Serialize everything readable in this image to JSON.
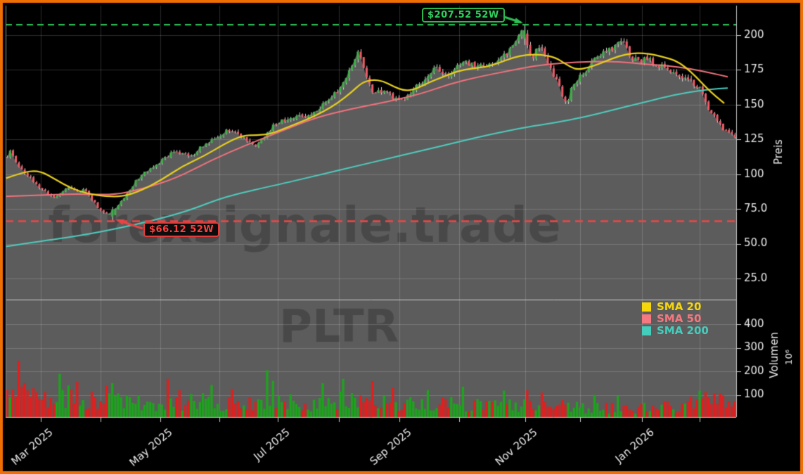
{
  "watermark": {
    "site": "forexsignale.trade",
    "symbol": "PLTR"
  },
  "annotations": {
    "high_label": "$207.52 52W",
    "low_label": "$66.12 52W"
  },
  "legend": [
    {
      "label": "SMA 20",
      "color": "#f5d60a"
    },
    {
      "label": "SMA 50",
      "color": "#f4787f"
    },
    {
      "label": "SMA 200",
      "color": "#45cdbc"
    }
  ],
  "axes": {
    "price_label": "Preis",
    "volume_label": "Volumen",
    "volume_scale": "10⁶"
  },
  "colors": {
    "bg": "#000000",
    "frame": "#ef6f05",
    "panel": "#5c5c5c",
    "grid": "rgba(255,255,255,0.17)",
    "axis": "#c9c9c9",
    "tick_text": "#e9e9e9",
    "candle_up": "#3fae49",
    "candle_down": "#ef5a66",
    "wick": "#d8d8d8",
    "sma20": "#e8cf1f",
    "sma50": "#f2727c",
    "sma200": "#4fccbe",
    "vol_up": "#1da41d",
    "vol_down": "#e01f1f",
    "high_line": "#2fbf57",
    "low_line": "#e84545",
    "watermark": "rgba(0,0,0,0.21)"
  },
  "chart_data": {
    "type": "candlestick",
    "symbol": "PLTR",
    "high_52w": 207.52,
    "low_52w": 66.12,
    "high_x": 746,
    "low_x": 160,
    "n_candles": 250,
    "seed": 11,
    "ylim": [
      10,
      221
    ],
    "volume_ylim_millions": [
      0,
      505
    ],
    "grid": true,
    "legend_position": "volume-panel-right",
    "price_ticks": [
      {
        "label": "200",
        "value": 200
      },
      {
        "label": "175",
        "value": 175
      },
      {
        "label": "150",
        "value": 150
      },
      {
        "label": "125",
        "value": 125
      },
      {
        "label": "100",
        "value": 100
      },
      {
        "label": "75.0",
        "value": 75
      },
      {
        "label": "50.0",
        "value": 50
      },
      {
        "label": "25.0",
        "value": 25
      }
    ],
    "volume_ticks": [
      {
        "label": "400",
        "value": 400
      },
      {
        "label": "300",
        "value": 300
      },
      {
        "label": "200",
        "value": 200
      },
      {
        "label": "100",
        "value": 100
      }
    ],
    "x_ticks": [
      {
        "label": "Mar 2025",
        "x": 58
      },
      {
        "label": "May 2025",
        "x": 228
      },
      {
        "label": "Jul 2025",
        "x": 395
      },
      {
        "label": "Sep 2025",
        "x": 568
      },
      {
        "label": "Nov 2025",
        "x": 747
      },
      {
        "label": "Jan 2026",
        "x": 913
      }
    ],
    "x_minor_ticks": [
      143,
      312,
      482,
      653,
      825,
      995
    ],
    "close_path": [
      [
        8,
        110
      ],
      [
        14,
        117
      ],
      [
        20,
        112
      ],
      [
        28,
        104
      ],
      [
        38,
        100
      ],
      [
        48,
        95
      ],
      [
        58,
        90
      ],
      [
        68,
        86
      ],
      [
        78,
        83
      ],
      [
        88,
        88
      ],
      [
        100,
        91
      ],
      [
        110,
        87
      ],
      [
        120,
        89
      ],
      [
        132,
        81
      ],
      [
        140,
        75
      ],
      [
        150,
        72
      ],
      [
        160,
        71
      ],
      [
        166,
        77
      ],
      [
        175,
        82
      ],
      [
        185,
        89
      ],
      [
        196,
        97
      ],
      [
        210,
        103
      ],
      [
        222,
        107
      ],
      [
        235,
        112
      ],
      [
        250,
        117
      ],
      [
        262,
        114
      ],
      [
        270,
        112
      ],
      [
        282,
        118
      ],
      [
        295,
        123
      ],
      [
        310,
        128
      ],
      [
        325,
        132
      ],
      [
        340,
        129
      ],
      [
        352,
        124
      ],
      [
        362,
        121
      ],
      [
        372,
        124
      ],
      [
        385,
        133
      ],
      [
        395,
        137
      ],
      [
        408,
        140
      ],
      [
        420,
        142
      ],
      [
        432,
        141
      ],
      [
        445,
        144
      ],
      [
        458,
        150
      ],
      [
        470,
        156
      ],
      [
        480,
        160
      ],
      [
        490,
        168
      ],
      [
        500,
        178
      ],
      [
        508,
        188
      ],
      [
        514,
        182
      ],
      [
        522,
        168
      ],
      [
        530,
        158
      ],
      [
        540,
        160
      ],
      [
        548,
        161
      ],
      [
        556,
        156
      ],
      [
        564,
        153
      ],
      [
        572,
        152
      ],
      [
        582,
        158
      ],
      [
        592,
        163
      ],
      [
        602,
        168
      ],
      [
        612,
        173
      ],
      [
        620,
        177
      ],
      [
        628,
        174
      ],
      [
        638,
        172
      ],
      [
        648,
        177
      ],
      [
        658,
        182
      ],
      [
        668,
        179
      ],
      [
        678,
        177
      ],
      [
        688,
        179
      ],
      [
        698,
        180
      ],
      [
        708,
        183
      ],
      [
        718,
        185
      ],
      [
        728,
        192
      ],
      [
        736,
        198
      ],
      [
        744,
        203
      ],
      [
        750,
        191
      ],
      [
        756,
        182
      ],
      [
        762,
        188
      ],
      [
        768,
        191
      ],
      [
        776,
        185
      ],
      [
        784,
        174
      ],
      [
        792,
        167
      ],
      [
        800,
        156
      ],
      [
        806,
        150
      ],
      [
        812,
        162
      ],
      [
        820,
        167
      ],
      [
        828,
        172
      ],
      [
        836,
        175
      ],
      [
        844,
        183
      ],
      [
        852,
        187
      ],
      [
        860,
        187
      ],
      [
        868,
        190
      ],
      [
        876,
        193
      ],
      [
        884,
        197
      ],
      [
        890,
        191
      ],
      [
        896,
        184
      ],
      [
        904,
        183
      ],
      [
        912,
        182
      ],
      [
        920,
        184
      ],
      [
        928,
        180
      ],
      [
        936,
        178
      ],
      [
        944,
        177
      ],
      [
        952,
        174
      ],
      [
        960,
        172
      ],
      [
        968,
        171
      ],
      [
        976,
        170
      ],
      [
        984,
        166
      ],
      [
        992,
        163
      ],
      [
        1000,
        158
      ],
      [
        1006,
        149
      ],
      [
        1012,
        144
      ],
      [
        1018,
        139
      ],
      [
        1024,
        135
      ],
      [
        1030,
        131
      ],
      [
        1036,
        129
      ],
      [
        1044,
        128
      ]
    ],
    "sma20_path": [
      [
        8,
        97
      ],
      [
        30,
        101
      ],
      [
        55,
        103
      ],
      [
        80,
        96
      ],
      [
        100,
        90
      ],
      [
        125,
        86
      ],
      [
        150,
        84
      ],
      [
        175,
        84
      ],
      [
        200,
        88
      ],
      [
        230,
        96
      ],
      [
        260,
        106
      ],
      [
        290,
        113
      ],
      [
        320,
        122
      ],
      [
        345,
        128
      ],
      [
        365,
        128
      ],
      [
        385,
        129
      ],
      [
        410,
        134
      ],
      [
        435,
        139
      ],
      [
        460,
        145
      ],
      [
        480,
        151
      ],
      [
        500,
        159
      ],
      [
        515,
        166
      ],
      [
        530,
        168
      ],
      [
        545,
        167
      ],
      [
        560,
        163
      ],
      [
        575,
        160
      ],
      [
        590,
        161
      ],
      [
        610,
        166
      ],
      [
        630,
        170
      ],
      [
        650,
        174
      ],
      [
        670,
        176
      ],
      [
        690,
        177
      ],
      [
        710,
        180
      ],
      [
        730,
        184
      ],
      [
        750,
        186
      ],
      [
        770,
        186
      ],
      [
        790,
        184
      ],
      [
        805,
        179
      ],
      [
        820,
        175
      ],
      [
        840,
        177
      ],
      [
        860,
        181
      ],
      [
        880,
        185
      ],
      [
        900,
        187
      ],
      [
        915,
        187
      ],
      [
        930,
        186
      ],
      [
        945,
        184
      ],
      [
        960,
        182
      ],
      [
        975,
        177
      ],
      [
        990,
        170
      ],
      [
        1005,
        162
      ],
      [
        1018,
        156
      ],
      [
        1030,
        151
      ]
    ],
    "sma50_path": [
      [
        8,
        84
      ],
      [
        60,
        85
      ],
      [
        110,
        86
      ],
      [
        160,
        85
      ],
      [
        200,
        89
      ],
      [
        250,
        97
      ],
      [
        300,
        110
      ],
      [
        350,
        121
      ],
      [
        400,
        131
      ],
      [
        450,
        141
      ],
      [
        500,
        147
      ],
      [
        550,
        152
      ],
      [
        600,
        158
      ],
      [
        640,
        165
      ],
      [
        680,
        170
      ],
      [
        720,
        174
      ],
      [
        760,
        178
      ],
      [
        800,
        180
      ],
      [
        840,
        181
      ],
      [
        880,
        181
      ],
      [
        920,
        179
      ],
      [
        950,
        178
      ],
      [
        980,
        176
      ],
      [
        1010,
        173
      ],
      [
        1035,
        170
      ]
    ],
    "sma200_path": [
      [
        8,
        48
      ],
      [
        60,
        52
      ],
      [
        130,
        57
      ],
      [
        213,
        66
      ],
      [
        270,
        74
      ],
      [
        320,
        84
      ],
      [
        400,
        93
      ],
      [
        450,
        99
      ],
      [
        500,
        105
      ],
      [
        550,
        111
      ],
      [
        600,
        117
      ],
      [
        650,
        123
      ],
      [
        700,
        129
      ],
      [
        750,
        134
      ],
      [
        790,
        137
      ],
      [
        830,
        141
      ],
      [
        870,
        146
      ],
      [
        910,
        151
      ],
      [
        950,
        156
      ],
      [
        980,
        159
      ],
      [
        1010,
        161
      ],
      [
        1035,
        162
      ]
    ],
    "volume_profile": [
      [
        8,
        85
      ],
      [
        30,
        120
      ],
      [
        70,
        75
      ],
      [
        110,
        85
      ],
      [
        150,
        80
      ],
      [
        200,
        65
      ],
      [
        250,
        70
      ],
      [
        300,
        75
      ],
      [
        350,
        60
      ],
      [
        400,
        70
      ],
      [
        450,
        65
      ],
      [
        500,
        80
      ],
      [
        550,
        65
      ],
      [
        600,
        55
      ],
      [
        650,
        60
      ],
      [
        700,
        50
      ],
      [
        750,
        60
      ],
      [
        800,
        50
      ],
      [
        850,
        45
      ],
      [
        900,
        42
      ],
      [
        950,
        50
      ],
      [
        1000,
        75
      ],
      [
        1045,
        65
      ]
    ],
    "volume_spikes": [
      [
        28,
        245
      ],
      [
        37,
        150
      ],
      [
        48,
        128
      ],
      [
        85,
        190
      ],
      [
        96,
        140
      ],
      [
        110,
        155
      ],
      [
        152,
        140
      ],
      [
        160,
        150
      ],
      [
        237,
        168
      ],
      [
        255,
        120
      ],
      [
        300,
        142
      ],
      [
        330,
        125
      ],
      [
        380,
        205
      ],
      [
        388,
        160
      ],
      [
        460,
        150
      ],
      [
        488,
        168
      ],
      [
        530,
        158
      ],
      [
        560,
        130
      ],
      [
        610,
        120
      ],
      [
        660,
        135
      ],
      [
        715,
        118
      ],
      [
        750,
        120
      ],
      [
        772,
        110
      ],
      [
        845,
        100
      ],
      [
        880,
        95
      ],
      [
        995,
        118
      ],
      [
        1002,
        112
      ],
      [
        1026,
        105
      ]
    ]
  }
}
